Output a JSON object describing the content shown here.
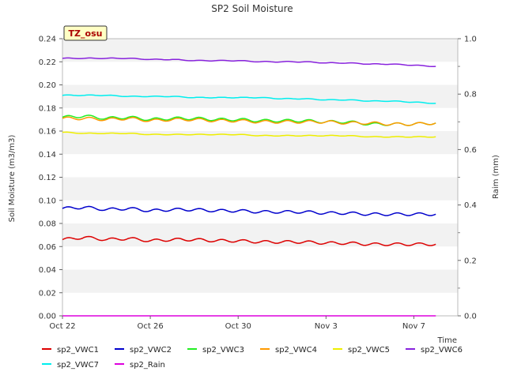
{
  "chart_data": {
    "type": "line",
    "title": "SP2 Soil Moisture",
    "xlabel": "Time",
    "ylabel": "Soil Moisture (m3/m3)",
    "y2label": "Raim (mm)",
    "badge": "TZ_osu",
    "x_ticks": [
      "Oct 22",
      "Oct 26",
      "Oct 30",
      "Nov 3",
      "Nov 7"
    ],
    "x_tick_days": [
      0,
      4,
      8,
      12,
      16
    ],
    "xlim": [
      0,
      18
    ],
    "ylim": [
      0,
      0.24
    ],
    "y_ticks": [
      "0.00",
      "0.02",
      "0.04",
      "0.06",
      "0.08",
      "0.10",
      "0.12",
      "0.14",
      "0.16",
      "0.18",
      "0.20",
      "0.22",
      "0.24"
    ],
    "y2lim": [
      0,
      1.0
    ],
    "y2_ticks": [
      "0.0",
      "0.2",
      "0.4",
      "0.6",
      "0.8",
      "1.0"
    ],
    "grid": "horizontal bands",
    "legend_position": "bottom",
    "series": [
      {
        "name": "sp2_VWC1",
        "color": "#dd0000",
        "axis": "left",
        "x": [
          0,
          1,
          2,
          3,
          4,
          5,
          6,
          7,
          8,
          9,
          10,
          11,
          12,
          13,
          14,
          15,
          16,
          17
        ],
        "values": [
          0.066,
          0.068,
          0.066,
          0.067,
          0.065,
          0.066,
          0.066,
          0.065,
          0.065,
          0.064,
          0.064,
          0.064,
          0.063,
          0.063,
          0.062,
          0.062,
          0.062,
          0.062
        ]
      },
      {
        "name": "sp2_VWC2",
        "color": "#0000cc",
        "axis": "left",
        "x": [
          0,
          1,
          2,
          3,
          4,
          5,
          6,
          7,
          8,
          9,
          10,
          11,
          12,
          13,
          14,
          15,
          16,
          17
        ],
        "values": [
          0.093,
          0.094,
          0.092,
          0.093,
          0.091,
          0.092,
          0.092,
          0.091,
          0.091,
          0.09,
          0.09,
          0.09,
          0.089,
          0.089,
          0.088,
          0.088,
          0.088,
          0.088
        ]
      },
      {
        "name": "sp2_VWC3",
        "color": "#22ee22",
        "axis": "left",
        "x": [
          0,
          1,
          2,
          3,
          4,
          5,
          6,
          7,
          8,
          9,
          10,
          11,
          12,
          13,
          14,
          15,
          16,
          17
        ],
        "values": [
          0.172,
          0.173,
          0.171,
          0.172,
          0.17,
          0.171,
          0.171,
          0.17,
          0.17,
          0.169,
          0.169,
          0.169,
          0.168,
          0.168,
          0.166,
          0.166,
          0.166,
          0.167
        ]
      },
      {
        "name": "sp2_VWC4",
        "color": "#ff9900",
        "axis": "left",
        "x": [
          0,
          1,
          2,
          3,
          4,
          5,
          6,
          7,
          8,
          9,
          10,
          11,
          12,
          13,
          14,
          15,
          16,
          17
        ],
        "values": [
          0.171,
          0.171,
          0.17,
          0.171,
          0.169,
          0.17,
          0.17,
          0.169,
          0.169,
          0.168,
          0.168,
          0.168,
          0.168,
          0.167,
          0.167,
          0.166,
          0.166,
          0.167
        ]
      },
      {
        "name": "sp2_VWC5",
        "color": "#eeee00",
        "axis": "left",
        "x": [
          0,
          1,
          2,
          3,
          4,
          5,
          6,
          7,
          8,
          9,
          10,
          11,
          12,
          13,
          14,
          15,
          16,
          17
        ],
        "values": [
          0.159,
          0.158,
          0.158,
          0.158,
          0.157,
          0.157,
          0.157,
          0.157,
          0.157,
          0.156,
          0.156,
          0.156,
          0.156,
          0.156,
          0.155,
          0.155,
          0.155,
          0.155
        ]
      },
      {
        "name": "sp2_VWC6",
        "color": "#8822dd",
        "axis": "left",
        "x": [
          0,
          1,
          2,
          3,
          4,
          5,
          6,
          7,
          8,
          9,
          10,
          11,
          12,
          13,
          14,
          15,
          16,
          17
        ],
        "values": [
          0.223,
          0.223,
          0.223,
          0.223,
          0.222,
          0.222,
          0.221,
          0.221,
          0.221,
          0.22,
          0.22,
          0.22,
          0.219,
          0.219,
          0.218,
          0.218,
          0.217,
          0.216
        ]
      },
      {
        "name": "sp2_VWC7",
        "color": "#00eeee",
        "axis": "left",
        "x": [
          0,
          1,
          2,
          3,
          4,
          5,
          6,
          7,
          8,
          9,
          10,
          11,
          12,
          13,
          14,
          15,
          16,
          17
        ],
        "values": [
          0.191,
          0.191,
          0.191,
          0.19,
          0.19,
          0.19,
          0.189,
          0.189,
          0.189,
          0.189,
          0.188,
          0.188,
          0.187,
          0.187,
          0.186,
          0.186,
          0.185,
          0.184
        ]
      },
      {
        "name": "sp2_Rain",
        "color": "#dd00dd",
        "axis": "right",
        "x": [
          0,
          17
        ],
        "values": [
          0,
          0
        ]
      }
    ]
  }
}
